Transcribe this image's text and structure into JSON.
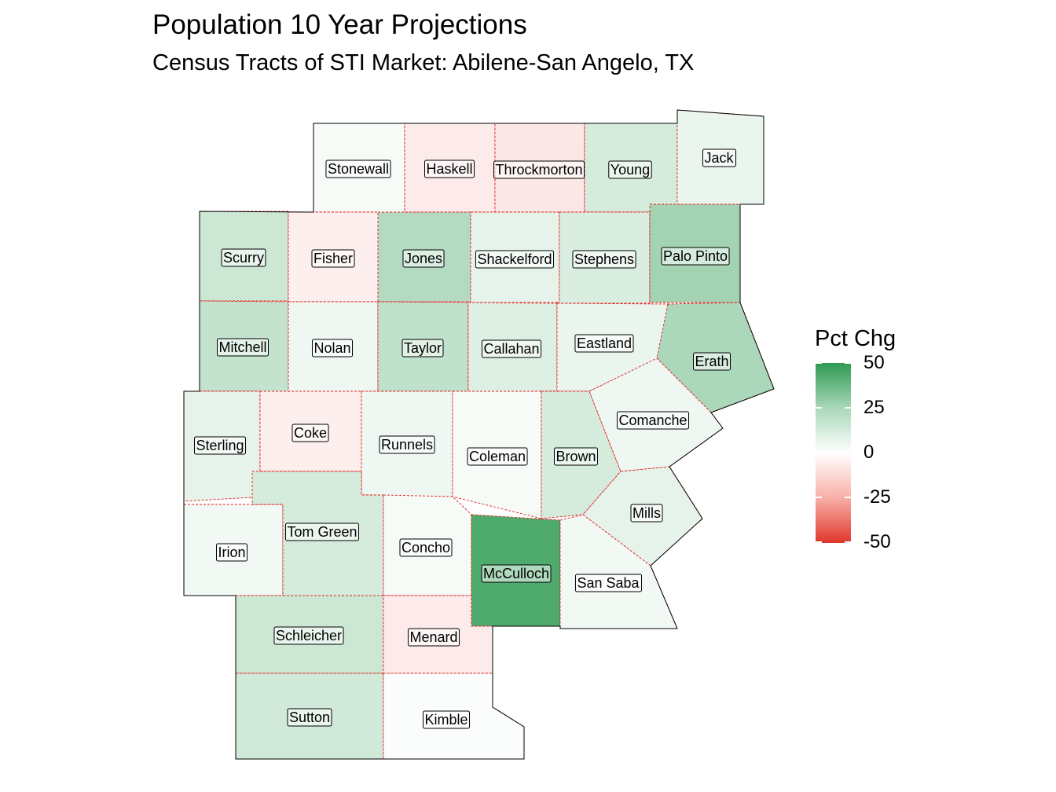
{
  "title": "Population 10 Year Projections",
  "subtitle": "Census Tracts of STI Market: Abilene-San Angelo, TX",
  "legend": {
    "title": "Pct Chg",
    "ticks": [
      "50",
      "25",
      "0",
      "-25",
      "-50"
    ],
    "colors": {
      "high": "#2e9a52",
      "mid": "#ffffff",
      "low": "#e0362b"
    },
    "range": [
      -50,
      50
    ]
  },
  "counties": [
    {
      "name": "Stonewall",
      "pct_chg": 2
    },
    {
      "name": "Haskell",
      "pct_chg": -5
    },
    {
      "name": "Throckmorton",
      "pct_chg": -6
    },
    {
      "name": "Young",
      "pct_chg": 10
    },
    {
      "name": "Jack",
      "pct_chg": 5
    },
    {
      "name": "Scurry",
      "pct_chg": 12
    },
    {
      "name": "Fisher",
      "pct_chg": -4
    },
    {
      "name": "Jones",
      "pct_chg": 18
    },
    {
      "name": "Shackelford",
      "pct_chg": 6
    },
    {
      "name": "Stephens",
      "pct_chg": 9
    },
    {
      "name": "Palo Pinto",
      "pct_chg": 22
    },
    {
      "name": "Mitchell",
      "pct_chg": 14
    },
    {
      "name": "Nolan",
      "pct_chg": 4
    },
    {
      "name": "Taylor",
      "pct_chg": 15
    },
    {
      "name": "Callahan",
      "pct_chg": 8
    },
    {
      "name": "Eastland",
      "pct_chg": 5
    },
    {
      "name": "Erath",
      "pct_chg": 20
    },
    {
      "name": "Sterling",
      "pct_chg": 6
    },
    {
      "name": "Coke",
      "pct_chg": -4
    },
    {
      "name": "Runnels",
      "pct_chg": 4
    },
    {
      "name": "Coleman",
      "pct_chg": 2
    },
    {
      "name": "Brown",
      "pct_chg": 10
    },
    {
      "name": "Comanche",
      "pct_chg": 4
    },
    {
      "name": "Mills",
      "pct_chg": 6
    },
    {
      "name": "Irion",
      "pct_chg": 3
    },
    {
      "name": "Tom Green",
      "pct_chg": 10
    },
    {
      "name": "Concho",
      "pct_chg": 2
    },
    {
      "name": "McCulloch",
      "pct_chg": 42
    },
    {
      "name": "San Saba",
      "pct_chg": 3
    },
    {
      "name": "Schleicher",
      "pct_chg": 12
    },
    {
      "name": "Menard",
      "pct_chg": -5
    },
    {
      "name": "Sutton",
      "pct_chg": 11
    },
    {
      "name": "Kimble",
      "pct_chg": 1
    }
  ]
}
